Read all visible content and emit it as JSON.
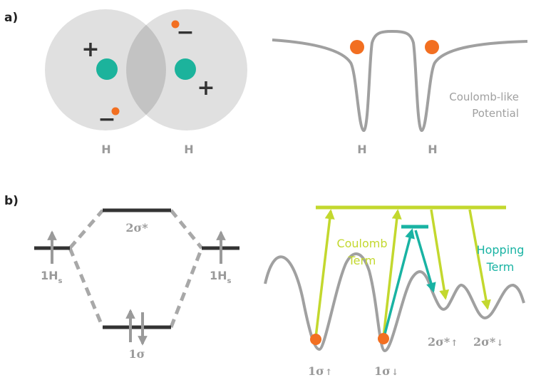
{
  "panel_a": {
    "label": "a)",
    "atom_left_label": "H",
    "atom_right_label": "H",
    "potential_left_label": "H",
    "potential_right_label": "H",
    "potential_caption_line1": "Coulomb-like",
    "potential_caption_line2": "Potential",
    "plus_sign": "+",
    "minus_sign": "−"
  },
  "panel_b": {
    "label": "b)",
    "antibonding_label": "2σ*",
    "bonding_label": "1σ",
    "left_atomic_label": "1H",
    "left_atomic_sub": "s",
    "right_atomic_label": "1H",
    "right_atomic_sub": "s",
    "coulomb_line1": "Coulomb",
    "coulomb_line2": "Term",
    "hopping_line1": "Hopping",
    "hopping_line2": "Term",
    "well1_label": "1σ",
    "well1_arrow": "↑",
    "well2_label": "1σ",
    "well2_arrow": "↓",
    "well3_label": "2σ*",
    "well3_arrow": "↑",
    "well4_label": "2σ*",
    "well4_arrow": "↓"
  },
  "colors": {
    "nucleus": "#1cb39c",
    "electron": "#f26f21",
    "coulomb": "#c3d82e",
    "hopping": "#19b3a3",
    "gray": "#a0a0a0",
    "level": "#333333"
  }
}
